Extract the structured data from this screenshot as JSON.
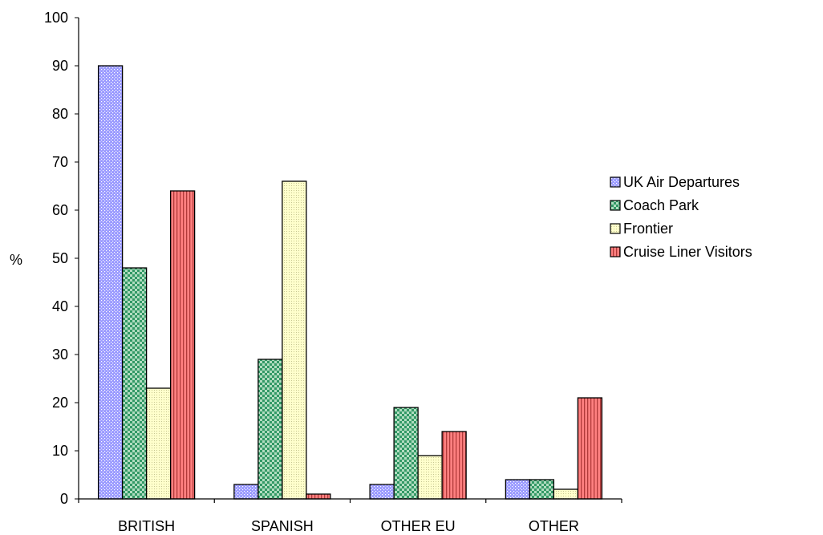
{
  "chart_data": {
    "type": "bar",
    "categories": [
      "BRITISH",
      "SPANISH",
      "OTHER EU",
      "OTHER"
    ],
    "series": [
      {
        "name": "UK Air Departures",
        "values": [
          90,
          3,
          3,
          4
        ],
        "color": "#9999ff",
        "pattern": "dots"
      },
      {
        "name": "Coach Park",
        "values": [
          48,
          29,
          19,
          4
        ],
        "color": "#339966",
        "pattern": "checker"
      },
      {
        "name": "Frontier",
        "values": [
          23,
          66,
          9,
          2
        ],
        "color": "#ffffcc",
        "pattern": "fine-dots"
      },
      {
        "name": "Cruise Liner Visitors",
        "values": [
          64,
          1,
          14,
          21
        ],
        "color": "#ff8080",
        "pattern": "vertical-lines"
      }
    ],
    "xlabel": "",
    "ylabel": "%",
    "ylim": [
      0,
      100
    ],
    "yticks": [
      0,
      10,
      20,
      30,
      40,
      50,
      60,
      70,
      80,
      90,
      100
    ],
    "grid": false,
    "legend": "right"
  }
}
